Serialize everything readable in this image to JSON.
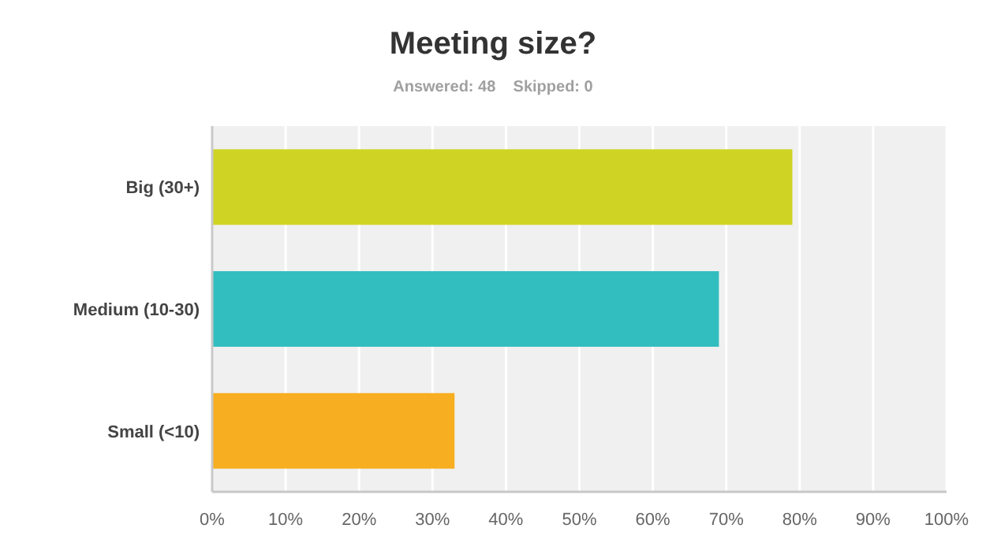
{
  "chart_data": {
    "type": "bar",
    "orientation": "horizontal",
    "title": "Meeting size?",
    "subtitle": "Answered: 48    Skipped: 0",
    "categories": [
      "Big (30+)",
      "Medium (10-30)",
      "Small (<10)"
    ],
    "values": [
      79,
      69,
      33
    ],
    "colors": [
      "#cfd424",
      "#32bdbf",
      "#f7ae20"
    ],
    "xlim": [
      0,
      100
    ],
    "xticks": [
      {
        "value": 0,
        "label": "0%"
      },
      {
        "value": 10,
        "label": "10%"
      },
      {
        "value": 20,
        "label": "20%"
      },
      {
        "value": 30,
        "label": "30%"
      },
      {
        "value": 40,
        "label": "40%"
      },
      {
        "value": 50,
        "label": "50%"
      },
      {
        "value": 60,
        "label": "60%"
      },
      {
        "value": 70,
        "label": "70%"
      },
      {
        "value": 80,
        "label": "80%"
      },
      {
        "value": 90,
        "label": "90%"
      },
      {
        "value": 100,
        "label": "100%"
      }
    ],
    "grid": "x"
  }
}
